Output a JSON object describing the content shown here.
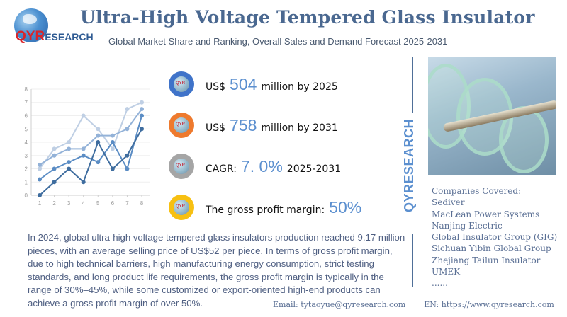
{
  "header": {
    "logo": {
      "brand_prefix": "QYR",
      "brand_suffix": "ESEARCH"
    },
    "title": "Ultra-High Voltage Tempered Glass Insulator",
    "subtitle": "Global Market Share and Ranking, Overall Sales and Demand Forecast 2025-2031"
  },
  "chart_data": {
    "type": "line",
    "title": "",
    "xlabel": "",
    "ylabel": "",
    "x": [
      1,
      2,
      3,
      4,
      5,
      6,
      7,
      8
    ],
    "xlim": [
      1,
      8
    ],
    "ylim": [
      0,
      8
    ],
    "yticks": [
      0,
      1,
      2,
      3,
      4,
      5,
      6,
      7,
      8
    ],
    "grid": true,
    "legend": "none",
    "series": [
      {
        "name": "series-1",
        "color": "#bfcfe4",
        "values": [
          2,
          3.5,
          4,
          6,
          5,
          3.5,
          6.5,
          7
        ]
      },
      {
        "name": "series-2",
        "color": "#93b2d8",
        "values": [
          2.3,
          3,
          3.5,
          3.5,
          4.5,
          4.5,
          5,
          6.5
        ]
      },
      {
        "name": "series-3",
        "color": "#5a8cc4",
        "values": [
          1.2,
          2,
          2.5,
          3,
          2.5,
          4,
          2,
          6
        ]
      },
      {
        "name": "series-4",
        "color": "#3f6d9f",
        "values": [
          0,
          1,
          2,
          1,
          4,
          2,
          3,
          5
        ]
      }
    ]
  },
  "stats": [
    {
      "icon": "blue-globe-icon",
      "color": "#3f73c9",
      "prefix": "US$",
      "value": "504",
      "suffix": "million by 2025"
    },
    {
      "icon": "orange-globe-icon",
      "color": "#ee7a2e",
      "prefix": "US$",
      "value": "758",
      "suffix": "million by 2031"
    },
    {
      "icon": "gray-globe-icon",
      "color": "#a5a5a5",
      "prefix": "CAGR:",
      "value": "7. 0%",
      "suffix": "2025-2031"
    },
    {
      "icon": "yellow-globe-icon",
      "color": "#f7c012",
      "prefix": "The gross profit margin:",
      "value": "50%",
      "suffix": ""
    }
  ],
  "icon_label": "QYR",
  "side_brand": "QYRESEARCH",
  "companies": {
    "heading": "Companies Covered:",
    "items": [
      "Sediver",
      "MacLean Power Systems",
      "Nanjing Electric",
      "Global Insulator Group (GIG)",
      "Sichuan Yibin Global Group",
      "Zhejiang Tailun Insulator",
      "UMEK",
      "......"
    ]
  },
  "description": "In 2024, global ultra-high voltage tempered glass insulators production reached 9.17 million pieces, with an average selling price of US$52 per piece. In terms of gross profit margin, due to high technical barriers, high manufacturing energy consumption, strict testing standards, and long product life requirements, the gross profit margin is typically in the range of 30%–45%, while some customized or export-oriented high-end products can achieve a gross profit margin of over 50%.",
  "contact": {
    "email": "Email: tytaoyue@qyresearch.com",
    "website": "EN: https://www.qyresearch.com"
  }
}
